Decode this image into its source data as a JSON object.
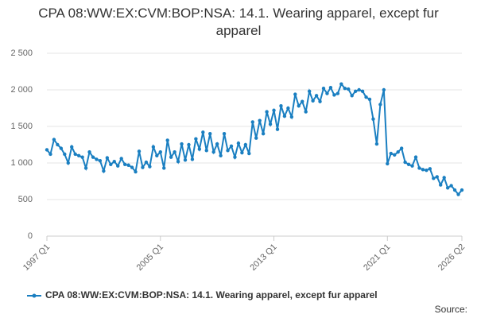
{
  "chart_data": {
    "type": "line",
    "title": "CPA 08:WW:EX:CVM:BOP:NSA: 14.1. Wearing apparel, except fur apparel",
    "categories": [
      "1997 Q1",
      null,
      null,
      null,
      null,
      null,
      null,
      null,
      null,
      null,
      null,
      null,
      null,
      null,
      null,
      null,
      null,
      null,
      null,
      null,
      null,
      null,
      null,
      null,
      null,
      null,
      null,
      null,
      null,
      null,
      null,
      null,
      "2005 Q1",
      null,
      null,
      null,
      null,
      null,
      null,
      null,
      null,
      null,
      null,
      null,
      null,
      null,
      null,
      null,
      null,
      null,
      null,
      null,
      null,
      null,
      null,
      null,
      null,
      null,
      null,
      null,
      null,
      null,
      null,
      null,
      "2013 Q1",
      null,
      null,
      null,
      null,
      null,
      null,
      null,
      null,
      null,
      null,
      null,
      null,
      null,
      null,
      null,
      null,
      null,
      null,
      null,
      null,
      null,
      null,
      null,
      null,
      null,
      null,
      null,
      null,
      null,
      null,
      null,
      "2021 Q1",
      null,
      null,
      null,
      null,
      null,
      null,
      null,
      null,
      null,
      null,
      null,
      null,
      null,
      null,
      null,
      null,
      null,
      null,
      null,
      null,
      "2026 Q2"
    ],
    "series": [
      {
        "name": "CPA 08:WW:EX:CVM:BOP:NSA: 14.1. Wearing apparel, except fur apparel",
        "color": "#1a7fc1",
        "values": [
          1180,
          1120,
          1320,
          1250,
          1200,
          1120,
          1000,
          1220,
          1120,
          1100,
          1080,
          930,
          1150,
          1080,
          1050,
          1030,
          890,
          1070,
          980,
          1020,
          960,
          1060,
          980,
          970,
          940,
          880,
          1160,
          940,
          1010,
          950,
          1220,
          1100,
          1150,
          930,
          1310,
          1080,
          1150,
          1020,
          1260,
          1040,
          1250,
          1050,
          1330,
          1190,
          1420,
          1170,
          1400,
          1150,
          1260,
          1100,
          1400,
          1170,
          1230,
          1080,
          1270,
          1140,
          1250,
          1130,
          1560,
          1340,
          1580,
          1400,
          1700,
          1530,
          1720,
          1460,
          1780,
          1640,
          1750,
          1630,
          1940,
          1780,
          1840,
          1700,
          1980,
          1850,
          1920,
          1840,
          2020,
          1950,
          2030,
          1930,
          1950,
          2080,
          2020,
          2010,
          1920,
          1980,
          2000,
          1980,
          1900,
          1870,
          1600,
          1260,
          1800,
          2000,
          990,
          1130,
          1110,
          1150,
          1200,
          1010,
          980,
          960,
          1080,
          930,
          910,
          900,
          920,
          790,
          810,
          700,
          800,
          660,
          690,
          630,
          570,
          630
        ]
      }
    ],
    "ylim": [
      0,
      2500
    ],
    "yticks": [
      0,
      500,
      {
        "value": 1000,
        "label": "1 000"
      },
      {
        "value": 1500,
        "label": "1 500"
      },
      {
        "value": 2000,
        "label": "2 000"
      },
      {
        "value": 2500,
        "label": "2 500"
      }
    ],
    "grid": true,
    "source": "Source:"
  }
}
